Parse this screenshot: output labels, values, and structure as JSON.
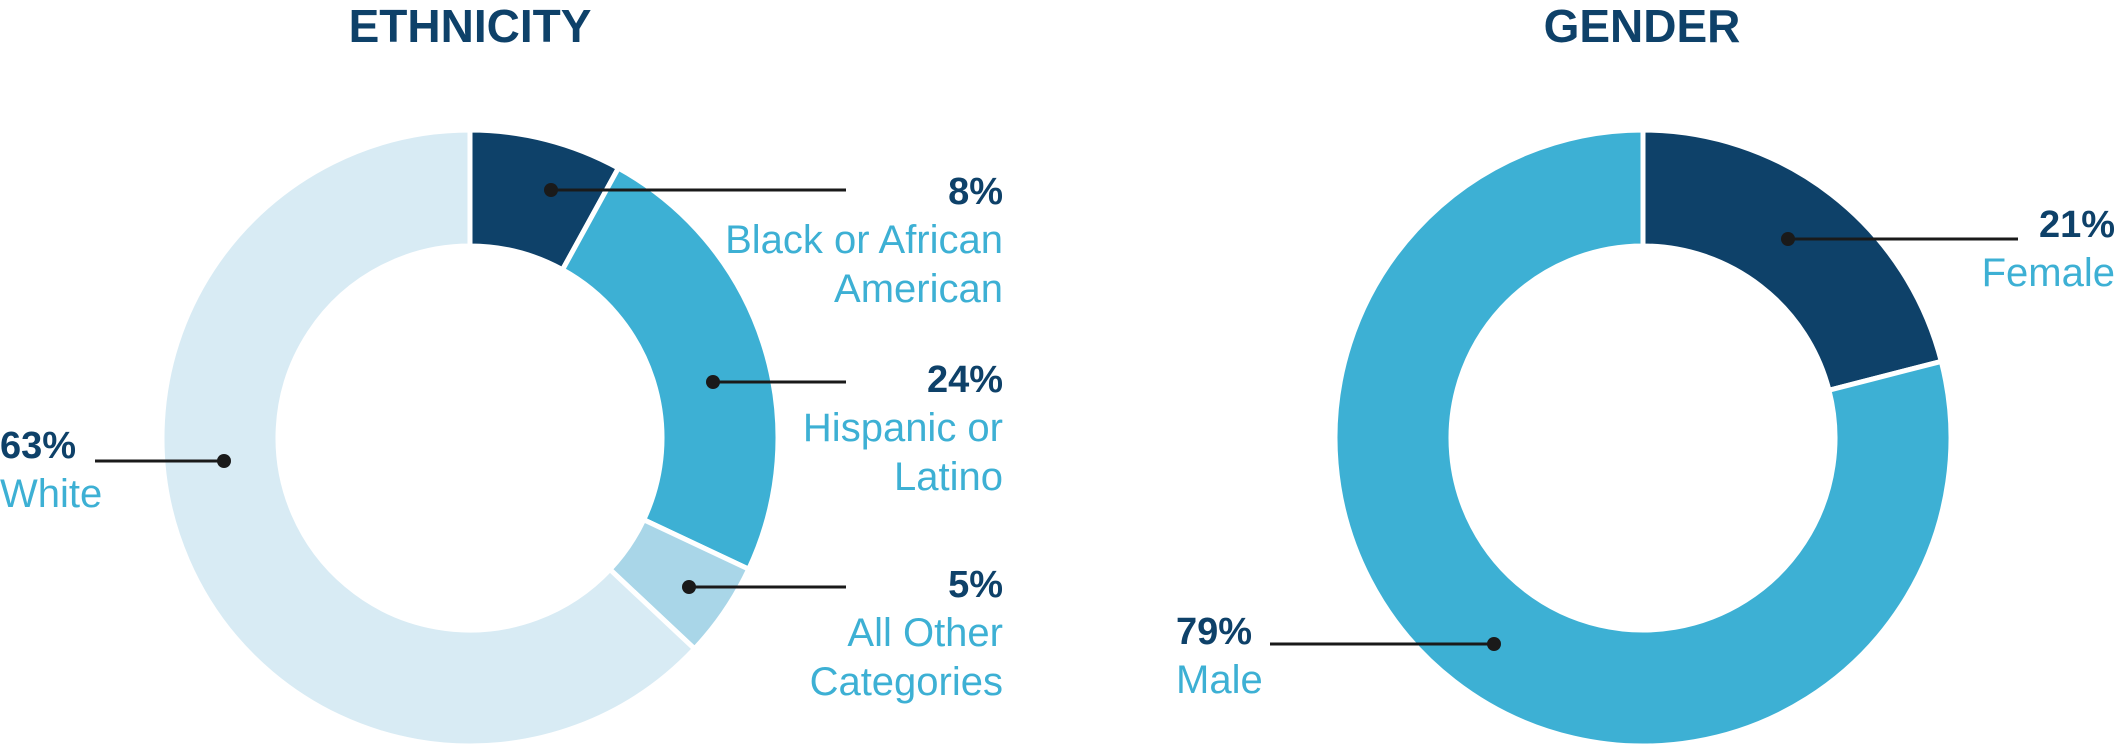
{
  "colors": {
    "title": "#0e4169",
    "percent": "#0e4169",
    "label": "#3db0d4",
    "leader": "#1a1a1a"
  },
  "chart_data": [
    {
      "type": "donut",
      "title": "ETHNICITY",
      "slices": [
        {
          "percent_label": "8%",
          "value": 8,
          "label_lines": [
            "Black or African",
            "American"
          ],
          "color": "#0e4169"
        },
        {
          "percent_label": "24%",
          "value": 24,
          "label_lines": [
            "Hispanic or",
            "Latino"
          ],
          "color": "#3db0d4"
        },
        {
          "percent_label": "5%",
          "value": 5,
          "label_lines": [
            "All Other",
            "Categories"
          ],
          "color": "#a9d6e8"
        },
        {
          "percent_label": "63%",
          "value": 63,
          "label_lines": [
            "White"
          ],
          "color": "#d8ebf4"
        }
      ]
    },
    {
      "type": "donut",
      "title": "GENDER",
      "slices": [
        {
          "percent_label": "21%",
          "value": 21,
          "label_lines": [
            "Female"
          ],
          "color": "#0e4169"
        },
        {
          "percent_label": "79%",
          "value": 79,
          "label_lines": [
            "Male"
          ],
          "color": "#3db0d4"
        }
      ]
    }
  ]
}
